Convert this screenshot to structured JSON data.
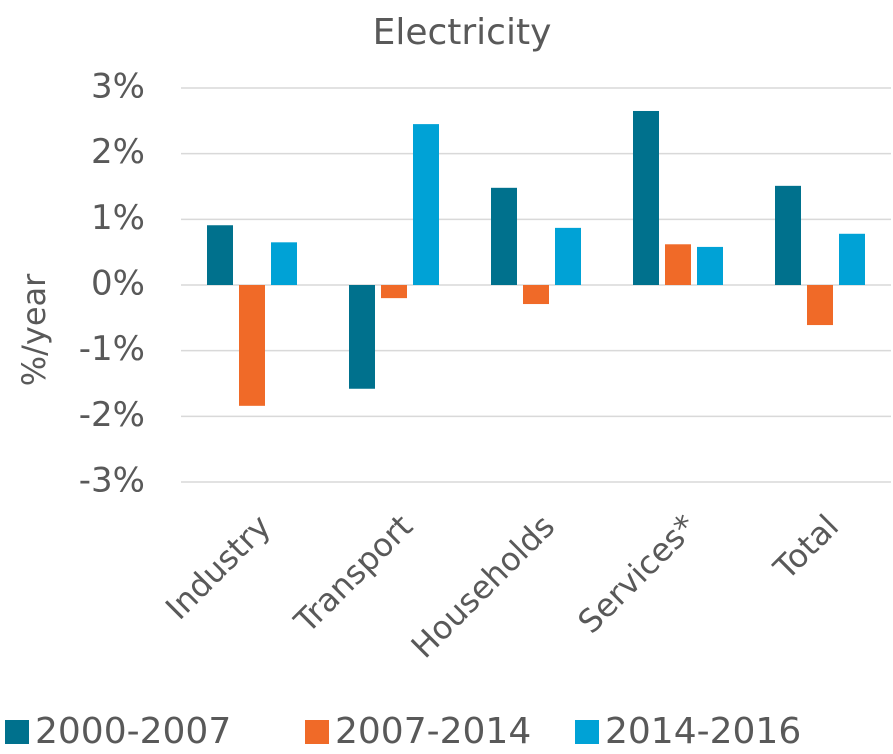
{
  "chart_data": {
    "type": "bar",
    "title": "Electricity",
    "y_label": "%/year",
    "categories": [
      "Industry",
      "Transport",
      "Households",
      "Services*",
      "Total"
    ],
    "series": [
      {
        "name": "2000-2007",
        "color": "#00718d",
        "values": [
          0.91,
          -1.58,
          1.48,
          2.65,
          1.51
        ]
      },
      {
        "name": "2007-2014",
        "color": "#f06a28",
        "values": [
          -1.84,
          -0.2,
          -0.29,
          0.62,
          -0.61
        ]
      },
      {
        "name": "2014-2016",
        "color": "#00a2d6",
        "values": [
          0.65,
          2.45,
          0.87,
          0.58,
          0.78
        ]
      }
    ],
    "ylim": [
      -3,
      3
    ],
    "yticks": [
      {
        "value": -3,
        "label": "-3%"
      },
      {
        "value": -2,
        "label": "-2%"
      },
      {
        "value": -1,
        "label": "-1%"
      },
      {
        "value": 0,
        "label": "0%"
      },
      {
        "value": 1,
        "label": "1%"
      },
      {
        "value": 2,
        "label": "2%"
      },
      {
        "value": 3,
        "label": "3%"
      }
    ],
    "grid": true,
    "legend": "bottom"
  }
}
